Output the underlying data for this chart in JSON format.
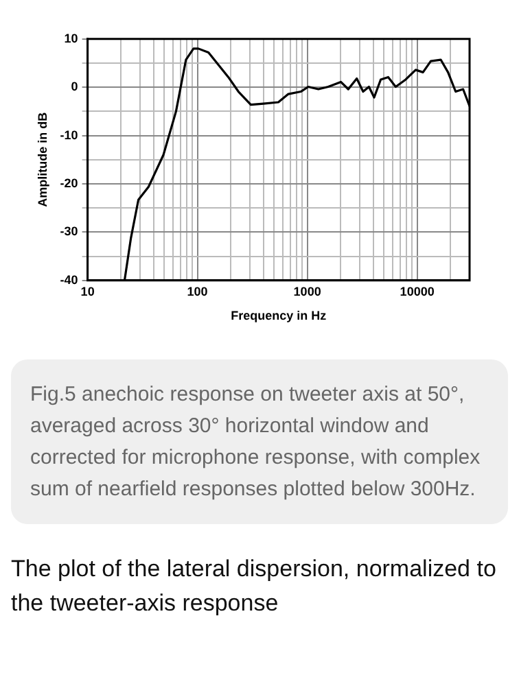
{
  "chart_data": {
    "type": "line",
    "xlabel": "Frequency in Hz",
    "ylabel": "Amplitude in dB",
    "x": [
      21.7,
      24.8,
      29,
      35.9,
      49,
      63.8,
      78.6,
      92,
      102,
      126,
      191,
      236,
      306,
      398,
      545,
      672,
      873,
      1020,
      1260,
      1550,
      2020,
      2360,
      2820,
      3220,
      3640,
      4060,
      4660,
      5450,
      6380,
      7860,
      9690,
      11300,
      13300,
      16400,
      19100,
      22400,
      26200,
      30000
    ],
    "series": [
      {
        "color": "#000000",
        "values": [
          -40,
          -31.2,
          -23.3,
          -20.6,
          -14,
          -5,
          5.7,
          8,
          8,
          7.2,
          2.1,
          -0.9,
          -3.6,
          -3.4,
          -3.1,
          -1.4,
          -0.9,
          0.1,
          -0.4,
          0.1,
          1.1,
          -0.4,
          1.8,
          -0.9,
          0.1,
          -2.1,
          1.6,
          2.1,
          0.1,
          1.6,
          3.6,
          3.1,
          5.4,
          5.7,
          3.1,
          -0.9,
          -0.4,
          -3.9
        ]
      }
    ],
    "log": "x",
    "xlim": [
      10,
      30000
    ],
    "xticks": [
      10,
      {
        "value": 20,
        "label": null
      },
      {
        "value": 30,
        "label": null
      },
      {
        "value": 40,
        "label": null
      },
      {
        "value": 50,
        "label": null
      },
      {
        "value": 60,
        "label": null
      },
      {
        "value": 70,
        "label": null
      },
      {
        "value": 80,
        "label": null
      },
      {
        "value": 90,
        "label": null
      },
      100,
      {
        "value": 200,
        "label": null
      },
      {
        "value": 300,
        "label": null
      },
      {
        "value": 400,
        "label": null
      },
      {
        "value": 500,
        "label": null
      },
      {
        "value": 600,
        "label": null
      },
      {
        "value": 700,
        "label": null
      },
      {
        "value": 800,
        "label": null
      },
      {
        "value": 900,
        "label": null
      },
      1000,
      {
        "value": 2000,
        "label": null
      },
      {
        "value": 3000,
        "label": null
      },
      {
        "value": 4000,
        "label": null
      },
      {
        "value": 5000,
        "label": null
      },
      {
        "value": 6000,
        "label": null
      },
      {
        "value": 7000,
        "label": null
      },
      {
        "value": 8000,
        "label": null
      },
      {
        "value": 9000,
        "label": null
      },
      10000,
      {
        "value": 20000,
        "label": null
      }
    ],
    "ylim": [
      -40,
      10
    ],
    "yticks": [
      -40,
      {
        "value": -35,
        "label": null
      },
      -30,
      {
        "value": -25,
        "label": null
      },
      -20,
      {
        "value": -15,
        "label": null
      },
      -10,
      {
        "value": -5,
        "label": null
      },
      0,
      {
        "value": 5,
        "label": null
      },
      10
    ],
    "grid": true,
    "legend": false,
    "marker": "none",
    "line_style": "solid",
    "annotations": [
      "Fig.5 anechoic response on tweeter axis at 50°, averaged across 30° horizontal window and corrected for microphone response, with complex sum of nearfield responses plotted below 300Hz.",
      "The plot of the lateral dispersion, normalized to the tweeter-axis response"
    ]
  }
}
